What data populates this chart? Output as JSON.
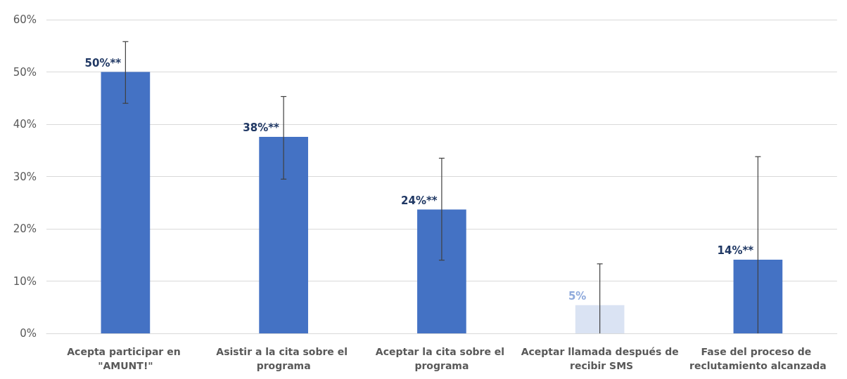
{
  "chart_data": {
    "type": "bar",
    "categories": [
      "Acepta participar en \"AMUNT!\"",
      "Asistir a la cita sobre el programa",
      "Aceptar la cita sobre el programa",
      "Aceptar llamada después de recibir SMS",
      "Fase del proceso de reclutamiento alcanzada"
    ],
    "values": [
      50,
      37.6,
      23.7,
      5.4,
      14.1
    ],
    "colors": [
      "#4472c4",
      "#4472c4",
      "#4472c4",
      "#dae3f3",
      "#4472c4"
    ],
    "errors": [
      [
        44,
        55.8
      ],
      [
        29.5,
        45.3
      ],
      [
        14,
        33.5
      ],
      [
        0,
        13.3
      ],
      [
        0,
        33.8
      ]
    ],
    "value_labels": [
      "50%**",
      "38%**",
      "24%**",
      "5%",
      "14%**"
    ],
    "ylim": [
      0,
      60
    ],
    "yticks": [
      {
        "value": 0,
        "label": "0%"
      },
      {
        "value": 10,
        "label": "10%"
      },
      {
        "value": 20,
        "label": "20%"
      },
      {
        "value": 30,
        "label": "30%"
      },
      {
        "value": 40,
        "label": "40%"
      },
      {
        "value": 50,
        "label": "50%"
      },
      {
        "value": 60,
        "label": "60%"
      }
    ],
    "grid": "y"
  }
}
